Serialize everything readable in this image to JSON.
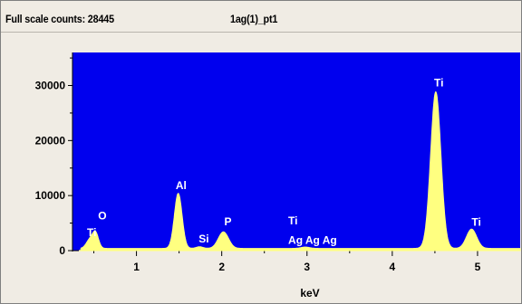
{
  "header": {
    "full_scale_text": "Full scale counts: 28445",
    "spectrum_name": "1ag(1)_pt1"
  },
  "colors": {
    "plot_background": "#0000ee",
    "spectrum_fill": "#ffff80",
    "window_background": "#f0ece4"
  },
  "chart_data": {
    "type": "area",
    "title": "",
    "xlabel": "keV",
    "ylabel": "",
    "xlim": [
      0.25,
      5.5
    ],
    "ylim": [
      0,
      36000
    ],
    "x_ticks": [
      1,
      2,
      3,
      4,
      5
    ],
    "x_tick_labels": [
      "1",
      "2",
      "3",
      "4",
      "5"
    ],
    "y_ticks": [
      0,
      10000,
      20000,
      30000
    ],
    "y_tick_labels": [
      "0",
      "10000",
      "20000",
      "30000"
    ],
    "grid": false,
    "peaks": [
      {
        "x": 0.45,
        "y": 1500,
        "width": 0.04
      },
      {
        "x": 0.52,
        "y": 2800,
        "width": 0.035
      },
      {
        "x": 1.49,
        "y": 10000,
        "width": 0.045
      },
      {
        "x": 1.74,
        "y": 300,
        "width": 0.04
      },
      {
        "x": 2.02,
        "y": 3000,
        "width": 0.06
      },
      {
        "x": 2.98,
        "y": 250,
        "width": 0.05
      },
      {
        "x": 4.51,
        "y": 28445,
        "width": 0.06
      },
      {
        "x": 4.93,
        "y": 3500,
        "width": 0.06
      }
    ],
    "baseline": 400,
    "annotations": [
      {
        "text": "Ti",
        "x": 0.42,
        "y": 2600
      },
      {
        "text": "O",
        "x": 0.55,
        "y": 5700
      },
      {
        "text": "Al",
        "x": 1.46,
        "y": 11200
      },
      {
        "text": "Si",
        "x": 1.73,
        "y": 1500
      },
      {
        "text": "P",
        "x": 2.03,
        "y": 4600
      },
      {
        "text": "Ti",
        "x": 2.78,
        "y": 4800
      },
      {
        "text": "Ag",
        "x": 2.78,
        "y": 1200
      },
      {
        "text": "Ag",
        "x": 2.98,
        "y": 1200
      },
      {
        "text": "Ag",
        "x": 3.18,
        "y": 1200
      },
      {
        "text": "Ti",
        "x": 4.49,
        "y": 29800
      },
      {
        "text": "Ti",
        "x": 4.93,
        "y": 4500
      }
    ]
  }
}
